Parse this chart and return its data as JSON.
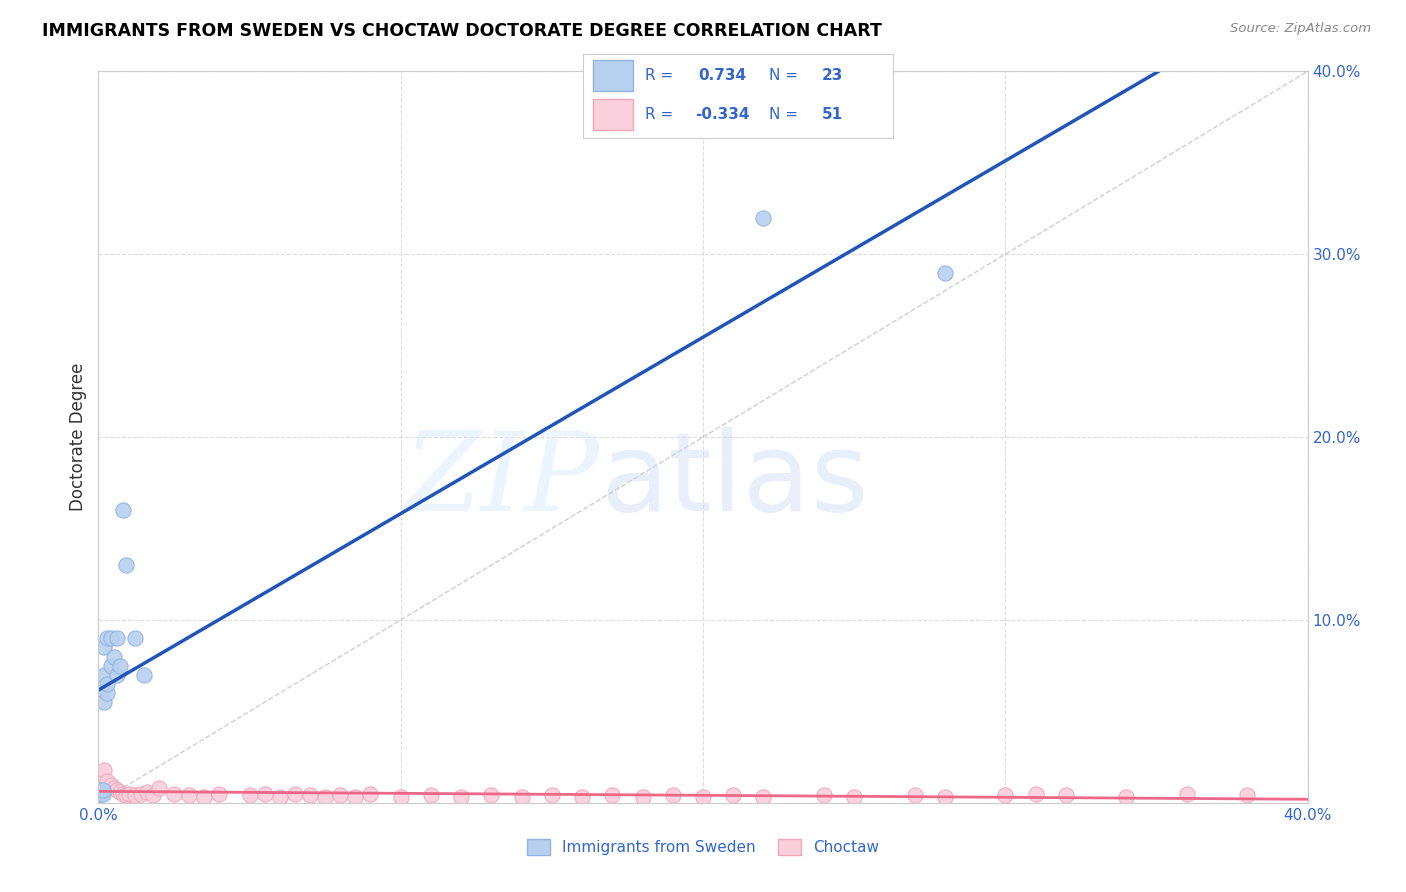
{
  "title": "IMMIGRANTS FROM SWEDEN VS CHOCTAW DOCTORATE DEGREE CORRELATION CHART",
  "source": "Source: ZipAtlas.com",
  "ylabel": "Doctorate Degree",
  "legend_sweden_R": "0.734",
  "legend_sweden_N": "23",
  "legend_choctaw_R": "-0.334",
  "legend_choctaw_N": "51",
  "sweden_color": "#92b4e3",
  "sweden_fill": "#b8d0ef",
  "choctaw_color": "#f4a7b9",
  "choctaw_fill": "#f9d0db",
  "regression_sweden_color": "#2255bb",
  "regression_choctaw_color": "#ee6688",
  "dashed_line_color": "#bbbbbb",
  "grid_color": "#dddddd",
  "axis_color": "#cccccc",
  "text_color": "#3366cc",
  "xlim": [
    0.0,
    0.4
  ],
  "ylim": [
    0.0,
    0.4
  ],
  "sweden_x": [
    0.0005,
    0.001,
    0.001,
    0.0015,
    0.0015,
    0.002,
    0.002,
    0.002,
    0.003,
    0.003,
    0.003,
    0.004,
    0.004,
    0.005,
    0.006,
    0.006,
    0.007,
    0.008,
    0.009,
    0.012,
    0.015,
    0.22,
    0.28
  ],
  "sweden_y": [
    0.005,
    0.005,
    0.007,
    0.005,
    0.007,
    0.055,
    0.07,
    0.085,
    0.06,
    0.065,
    0.09,
    0.075,
    0.09,
    0.08,
    0.07,
    0.09,
    0.075,
    0.16,
    0.13,
    0.09,
    0.07,
    0.32,
    0.29
  ],
  "choctaw_x": [
    0.001,
    0.002,
    0.003,
    0.004,
    0.005,
    0.006,
    0.007,
    0.008,
    0.009,
    0.01,
    0.012,
    0.014,
    0.016,
    0.018,
    0.02,
    0.025,
    0.03,
    0.035,
    0.04,
    0.05,
    0.055,
    0.06,
    0.065,
    0.07,
    0.075,
    0.08,
    0.085,
    0.09,
    0.1,
    0.11,
    0.12,
    0.13,
    0.14,
    0.15,
    0.16,
    0.17,
    0.18,
    0.19,
    0.2,
    0.21,
    0.22,
    0.24,
    0.25,
    0.27,
    0.28,
    0.3,
    0.31,
    0.32,
    0.34,
    0.36,
    0.38
  ],
  "choctaw_y": [
    0.015,
    0.018,
    0.012,
    0.01,
    0.008,
    0.007,
    0.006,
    0.005,
    0.004,
    0.005,
    0.004,
    0.005,
    0.006,
    0.004,
    0.008,
    0.005,
    0.004,
    0.003,
    0.005,
    0.004,
    0.005,
    0.003,
    0.005,
    0.004,
    0.003,
    0.004,
    0.003,
    0.005,
    0.003,
    0.004,
    0.003,
    0.004,
    0.003,
    0.004,
    0.003,
    0.004,
    0.003,
    0.004,
    0.003,
    0.004,
    0.003,
    0.004,
    0.003,
    0.004,
    0.003,
    0.004,
    0.005,
    0.004,
    0.003,
    0.005,
    0.004
  ]
}
